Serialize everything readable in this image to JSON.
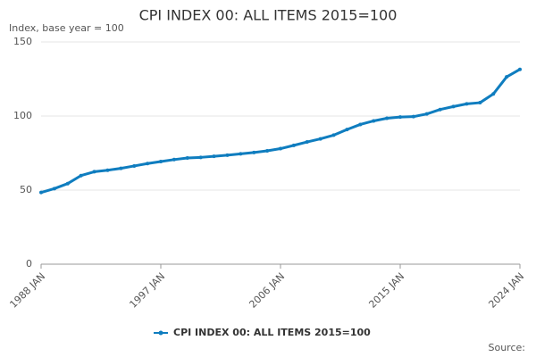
{
  "chart_data": {
    "type": "line",
    "title": "CPI INDEX 00: ALL ITEMS 2015=100",
    "subtitle": "Index, base year = 100",
    "source": "Source:",
    "categories": [
      "1988 JAN",
      null,
      null,
      null,
      null,
      null,
      null,
      null,
      null,
      "1997 JAN",
      null,
      null,
      null,
      null,
      null,
      null,
      null,
      null,
      "2006 JAN",
      null,
      null,
      null,
      null,
      null,
      null,
      null,
      null,
      "2015 JAN",
      null,
      null,
      null,
      null,
      null,
      null,
      null,
      null,
      "2024 JAN"
    ],
    "series": [
      {
        "name": "CPI INDEX 00: ALL ITEMS 2015=100",
        "color": "#0f7dbf",
        "values": [
          48.4,
          51.0,
          54.4,
          59.8,
          62.4,
          63.4,
          64.7,
          66.3,
          67.9,
          69.3,
          70.6,
          71.7,
          72.1,
          72.8,
          73.6,
          74.5,
          75.4,
          76.5,
          78.0,
          80.2,
          82.5,
          84.6,
          87.1,
          90.9,
          94.3,
          96.7,
          98.5,
          99.3,
          99.6,
          101.4,
          104.4,
          106.4,
          108.2,
          109.0,
          114.9,
          126.4,
          131.5
        ]
      }
    ],
    "ylim": [
      0,
      150
    ],
    "yticks": [
      0,
      50,
      100,
      150
    ],
    "grid": true
  }
}
